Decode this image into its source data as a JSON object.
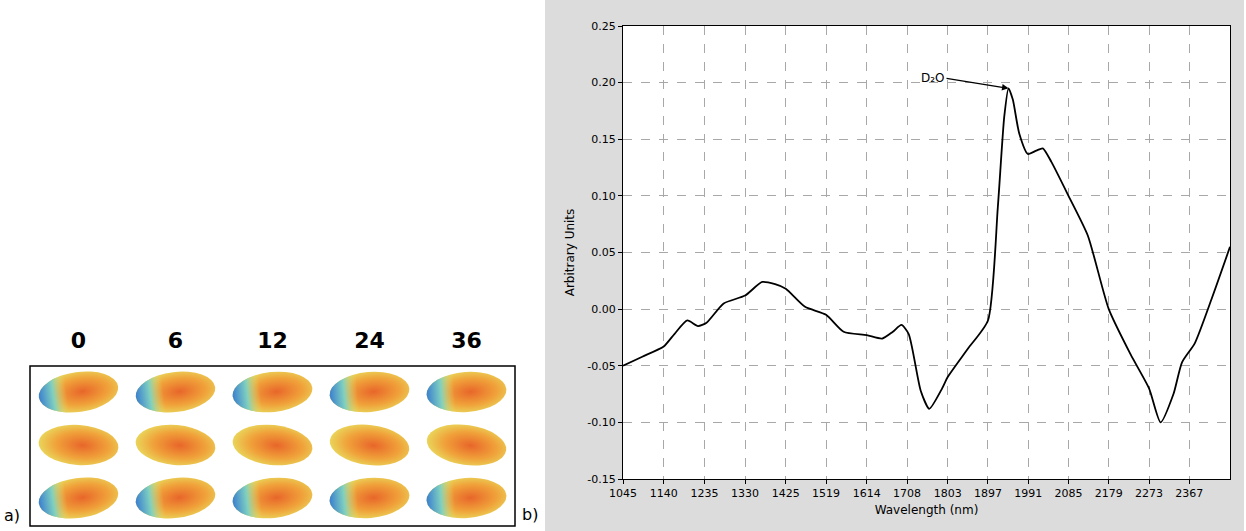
{
  "panel_a": {
    "label": "a)",
    "column_labels": [
      "0",
      "6",
      "12",
      "24",
      "36"
    ]
  },
  "panel_b_label": "b)",
  "chart_data": {
    "type": "line",
    "x_label": "Wavelength (nm)",
    "y_label": "Arbitrary Units",
    "color": "#000000",
    "line_style": "solid",
    "grid": true,
    "x": [
      1045,
      1090,
      1140,
      1165,
      1195,
      1220,
      1240,
      1280,
      1330,
      1370,
      1400,
      1425,
      1470,
      1519,
      1560,
      1614,
      1650,
      1675,
      1695,
      1712,
      1740,
      1760,
      1790,
      1803,
      1850,
      1897,
      1920,
      1935,
      1945,
      1955,
      1970,
      1990,
      2010,
      2025,
      2045,
      2085,
      2130,
      2179,
      2230,
      2273,
      2300,
      2330,
      2350,
      2380,
      2420,
      2462
    ],
    "values": [
      -0.05,
      -0.042,
      -0.033,
      -0.022,
      -0.01,
      -0.015,
      -0.012,
      0.005,
      0.012,
      0.024,
      0.022,
      0.018,
      0.002,
      -0.005,
      -0.02,
      -0.023,
      -0.026,
      -0.02,
      -0.014,
      -0.022,
      -0.072,
      -0.088,
      -0.07,
      -0.06,
      -0.035,
      -0.01,
      0.09,
      0.17,
      0.195,
      0.185,
      0.155,
      0.137,
      0.14,
      0.142,
      0.13,
      0.1,
      0.065,
      0.0,
      -0.04,
      -0.07,
      -0.1,
      -0.075,
      -0.047,
      -0.03,
      0.01,
      0.055
    ],
    "xlim": [
      1045,
      2462
    ],
    "xticks": [
      1045,
      1140,
      1235,
      1330,
      1425,
      1519,
      1614,
      1708,
      1803,
      1897,
      1991,
      2085,
      2179,
      2273,
      2367
    ],
    "ylim": [
      -0.15,
      0.25
    ],
    "yticks": [
      -0.15,
      {
        "value": -0.1,
        "label": "-0.10"
      },
      -0.05,
      {
        "value": 0,
        "label": "0.00"
      },
      0.05,
      {
        "value": 0.1,
        "label": "0.10"
      },
      0.15,
      {
        "value": 0.2,
        "label": "0.20"
      },
      0.25
    ],
    "annotations": [
      {
        "text": "D₂O",
        "x": 1945,
        "y": 0.195
      }
    ]
  }
}
